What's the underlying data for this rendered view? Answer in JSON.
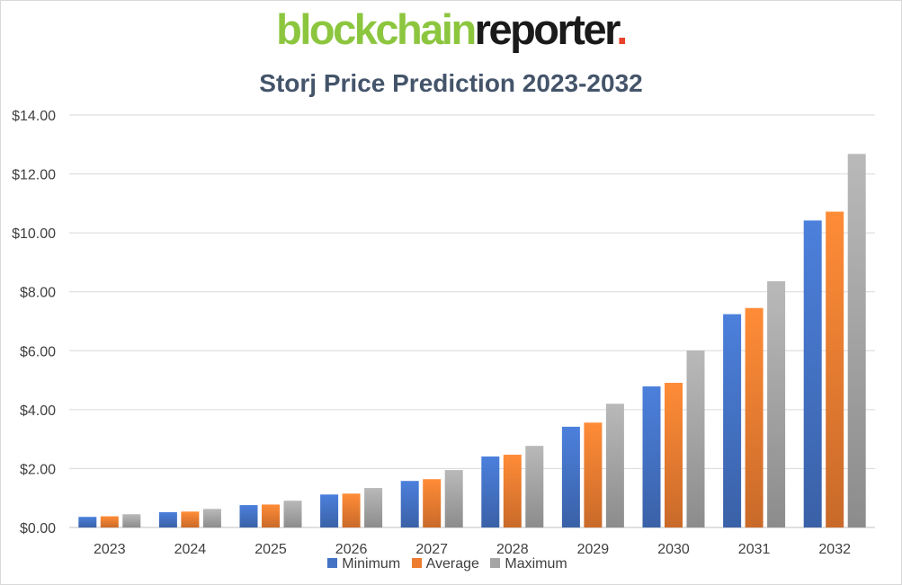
{
  "logo": {
    "part1": "blockchain",
    "part2": "reporter",
    "dot": "."
  },
  "chart_data": {
    "type": "bar",
    "title": "Storj Price Prediction 2023-2032",
    "categories": [
      "2023",
      "2024",
      "2025",
      "2026",
      "2027",
      "2028",
      "2029",
      "2030",
      "2031",
      "2032"
    ],
    "series": [
      {
        "name": "Minimum",
        "color": "#4472c4",
        "values": [
          0.36,
          0.52,
          0.76,
          1.12,
          1.58,
          2.41,
          3.42,
          4.79,
          7.24,
          10.42
        ]
      },
      {
        "name": "Average",
        "color": "#ed7d31",
        "values": [
          0.38,
          0.54,
          0.78,
          1.15,
          1.64,
          2.47,
          3.56,
          4.91,
          7.45,
          10.72
        ]
      },
      {
        "name": "Maximum",
        "color": "#a5a5a5",
        "values": [
          0.45,
          0.63,
          0.91,
          1.34,
          1.95,
          2.77,
          4.2,
          6.01,
          8.36,
          12.68
        ]
      }
    ],
    "y_ticks": [
      "$0.00",
      "$2.00",
      "$4.00",
      "$6.00",
      "$8.00",
      "$10.00",
      "$12.00",
      "$14.00"
    ],
    "ylim": [
      0,
      14
    ],
    "grid": true,
    "legend_position": "bottom"
  }
}
